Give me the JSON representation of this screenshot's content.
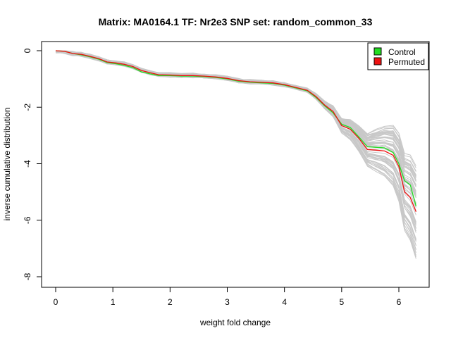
{
  "chart_data": {
    "type": "line",
    "title": "Matrix: MA0164.1 TF: Nr2e3 SNP set: random_common_33",
    "xlabel": "weight fold change",
    "ylabel": "inverse cumulative distribution",
    "xlim": [
      0,
      6.3
    ],
    "ylim": [
      -8,
      0
    ],
    "xticks": [
      "0",
      "1",
      "2",
      "3",
      "4",
      "5",
      "6"
    ],
    "yticks": [
      "0",
      "-2",
      "-4",
      "-6",
      "-8"
    ],
    "grid": false,
    "legend_position": "top-right",
    "colors": {
      "control": "#22dd22",
      "permuted": "#ee1111",
      "background": "#c8c8c8"
    },
    "series": [
      {
        "name": "Control",
        "x": [
          0,
          0.15,
          0.3,
          0.45,
          0.6,
          0.75,
          0.9,
          1.05,
          1.2,
          1.35,
          1.5,
          1.65,
          1.8,
          2.0,
          2.2,
          2.4,
          2.6,
          2.8,
          3.0,
          3.2,
          3.4,
          3.6,
          3.8,
          4.0,
          4.2,
          4.4,
          4.55,
          4.7,
          4.85,
          5.0,
          5.15,
          5.3,
          5.45,
          5.6,
          5.75,
          5.9,
          6.0,
          6.1,
          6.2,
          6.3
        ],
        "values": [
          0,
          -0.02,
          -0.1,
          -0.15,
          -0.22,
          -0.3,
          -0.42,
          -0.46,
          -0.52,
          -0.6,
          -0.75,
          -0.82,
          -0.88,
          -0.88,
          -0.9,
          -0.9,
          -0.92,
          -0.95,
          -1.0,
          -1.08,
          -1.12,
          -1.14,
          -1.16,
          -1.22,
          -1.32,
          -1.42,
          -1.65,
          -1.95,
          -2.2,
          -2.6,
          -2.72,
          -3.05,
          -3.4,
          -3.42,
          -3.44,
          -3.6,
          -4.0,
          -4.6,
          -4.75,
          -5.5
        ]
      },
      {
        "name": "Permuted",
        "x": [
          0,
          0.15,
          0.3,
          0.45,
          0.6,
          0.75,
          0.9,
          1.05,
          1.2,
          1.35,
          1.5,
          1.65,
          1.8,
          2.0,
          2.2,
          2.4,
          2.6,
          2.8,
          3.0,
          3.2,
          3.4,
          3.6,
          3.8,
          4.0,
          4.2,
          4.4,
          4.55,
          4.7,
          4.85,
          5.0,
          5.15,
          5.3,
          5.45,
          5.6,
          5.75,
          5.9,
          6.0,
          6.1,
          6.2,
          6.3
        ],
        "values": [
          0,
          -0.02,
          -0.1,
          -0.13,
          -0.2,
          -0.28,
          -0.4,
          -0.43,
          -0.48,
          -0.56,
          -0.7,
          -0.78,
          -0.85,
          -0.86,
          -0.88,
          -0.88,
          -0.9,
          -0.93,
          -0.98,
          -1.06,
          -1.1,
          -1.12,
          -1.14,
          -1.2,
          -1.3,
          -1.4,
          -1.62,
          -1.92,
          -2.15,
          -2.65,
          -2.78,
          -3.1,
          -3.5,
          -3.52,
          -3.55,
          -3.7,
          -4.1,
          -5.0,
          -5.2,
          -5.7
        ]
      }
    ]
  }
}
